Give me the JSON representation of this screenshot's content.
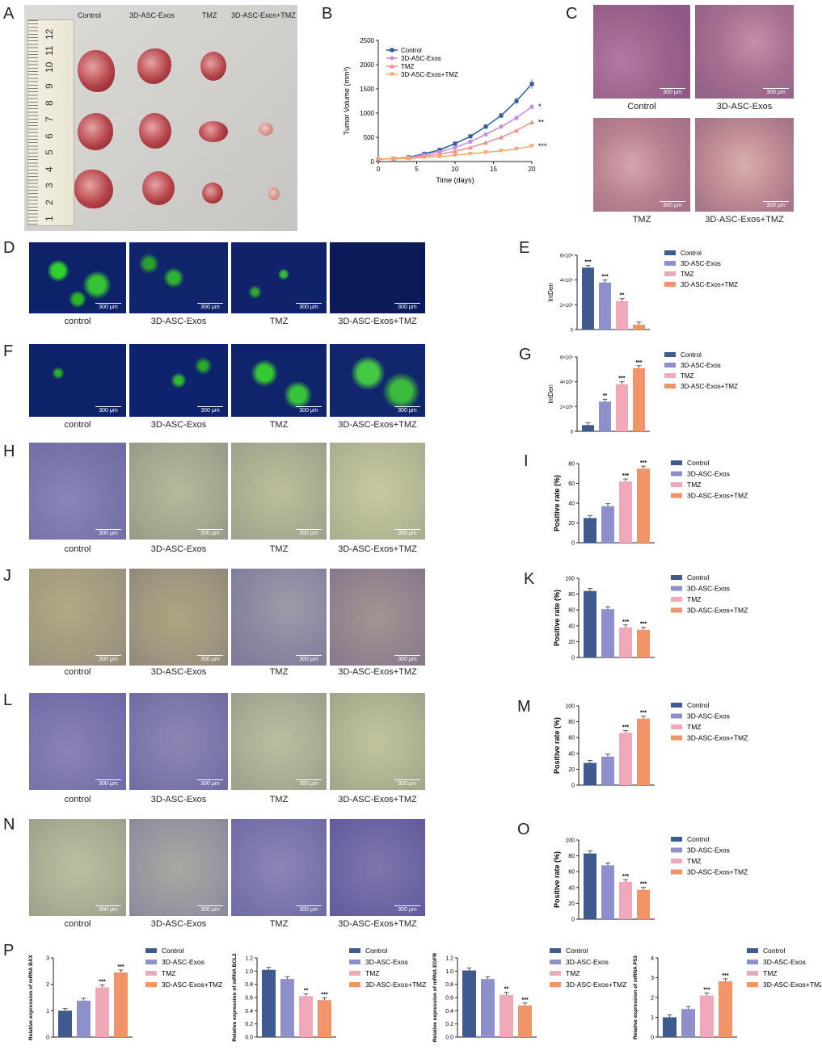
{
  "panel_letters": [
    "A",
    "B",
    "C",
    "D",
    "E",
    "F",
    "G",
    "H",
    "I",
    "J",
    "K",
    "L",
    "M",
    "N",
    "O",
    "P"
  ],
  "groups": [
    "Control",
    "3D-ASC-Exos",
    "TMZ",
    "3D-ASC-Exos+TMZ"
  ],
  "groups_lower": [
    "control",
    "3D-ASC-Exos",
    "TMZ",
    "3D-ASC-Exos+TMZ"
  ],
  "scalebar": "300 μm",
  "colors": {
    "control": "#3F5A8E",
    "exos": "#8E90CC",
    "tmz": "#F1A9B9",
    "combo": "#F0956A"
  },
  "ruler_numbers": [
    "1",
    "2",
    "3",
    "4",
    "5",
    "6",
    "7",
    "8",
    "9",
    "10",
    "11",
    "12"
  ],
  "chart_data": [
    {
      "id": "B",
      "type": "line",
      "xlabel": "Time (days)",
      "ylabel": "Tumor Volume (mm³)",
      "ylim": [
        0,
        2500
      ],
      "xlim": [
        0,
        20
      ],
      "x": [
        0,
        2,
        4,
        6,
        8,
        10,
        12,
        14,
        16,
        18,
        20
      ],
      "xticks": [
        0,
        5,
        10,
        15,
        20
      ],
      "yticks": [
        0,
        500,
        1000,
        1500,
        2000,
        2500
      ],
      "series": [
        {
          "name": "Control",
          "values": [
            50,
            60,
            90,
            160,
            240,
            370,
            520,
            720,
            950,
            1250,
            1600
          ],
          "marker": "square",
          "color": "#2E5B9A"
        },
        {
          "name": "3D-ASC-Exos",
          "values": [
            50,
            60,
            85,
            140,
            200,
            290,
            410,
            560,
            720,
            900,
            1130
          ],
          "marker": "circle",
          "color": "#C58BE0"
        },
        {
          "name": "TMZ",
          "values": [
            50,
            58,
            75,
            110,
            150,
            210,
            290,
            390,
            500,
            640,
            810
          ],
          "marker": "triangle",
          "color": "#F28C8C"
        },
        {
          "name": "3D-ASC-Exos+TMZ",
          "values": [
            50,
            55,
            65,
            85,
            100,
            130,
            160,
            190,
            220,
            260,
            320
          ],
          "marker": "triangle-down",
          "color": "#F4A96A"
        }
      ],
      "significance": [
        "*",
        "**",
        "***"
      ]
    },
    {
      "id": "E",
      "type": "bar",
      "ylabel": "IntDen",
      "ymax": 6000000,
      "yticks": [
        0,
        2000000,
        4000000,
        6000000
      ],
      "yticklabels": [
        "0",
        "2×10⁶",
        "4×10⁶",
        "6×10⁶"
      ],
      "values": [
        5000000,
        3800000,
        2300000,
        400000
      ],
      "sig": [
        "***",
        "***",
        "**",
        ""
      ]
    },
    {
      "id": "G",
      "type": "bar",
      "ylabel": "IntDen",
      "ymax": 6000000,
      "yticks": [
        0,
        2000000,
        4000000,
        6000000
      ],
      "yticklabels": [
        "0",
        "2×10⁶",
        "4×10⁶",
        "6×10⁶"
      ],
      "values": [
        500000,
        2400000,
        3800000,
        5100000
      ],
      "sig": [
        "",
        "**",
        "***",
        "***"
      ]
    },
    {
      "id": "I",
      "type": "bar",
      "ylabel": "Positive rate (%)",
      "ymax": 80,
      "yticks": [
        0,
        20,
        40,
        60,
        80
      ],
      "yticklabels": [
        "0",
        "20",
        "40",
        "60",
        "80"
      ],
      "values": [
        25,
        37,
        62,
        75
      ],
      "sig": [
        "",
        "",
        "***",
        "***"
      ]
    },
    {
      "id": "K",
      "type": "bar",
      "ylabel": "Positive rate (%)",
      "ymax": 100,
      "yticks": [
        0,
        20,
        40,
        60,
        80,
        100
      ],
      "yticklabels": [
        "0",
        "20",
        "40",
        "60",
        "80",
        "100"
      ],
      "values": [
        84,
        61,
        38,
        35
      ],
      "sig": [
        "",
        "",
        "***",
        "***"
      ]
    },
    {
      "id": "M",
      "type": "bar",
      "ylabel": "Positive rate (%)",
      "ymax": 100,
      "yticks": [
        0,
        20,
        40,
        60,
        80,
        100
      ],
      "yticklabels": [
        "0",
        "20",
        "40",
        "60",
        "80",
        "100"
      ],
      "values": [
        28,
        36,
        66,
        84
      ],
      "sig": [
        "",
        "",
        "***",
        "***"
      ]
    },
    {
      "id": "O",
      "type": "bar",
      "ylabel": "Positive rate (%)",
      "ymax": 100,
      "yticks": [
        0,
        20,
        40,
        60,
        80,
        100
      ],
      "yticklabels": [
        "0",
        "20",
        "40",
        "60",
        "80",
        "100"
      ],
      "values": [
        83,
        68,
        47,
        37
      ],
      "sig": [
        "",
        "",
        "***",
        "***"
      ]
    },
    {
      "id": "P1",
      "type": "bar",
      "ylabel": "Relative expression of  mRNA BAX",
      "ymax": 3,
      "yticks": [
        0,
        1,
        2,
        3
      ],
      "yticklabels": [
        "0",
        "1",
        "2",
        "3"
      ],
      "values": [
        1.0,
        1.38,
        1.88,
        2.45
      ],
      "sig": [
        "",
        "",
        "***",
        "***"
      ]
    },
    {
      "id": "P2",
      "type": "bar",
      "ylabel": "Relative expression of  mRNA BCL2",
      "ymax": 1.2,
      "yticks": [
        0,
        0.2,
        0.4,
        0.6,
        0.8,
        1.0,
        1.2
      ],
      "yticklabels": [
        "0.0",
        "0.2",
        "0.4",
        "0.6",
        "0.8",
        "1.0",
        "1.2"
      ],
      "values": [
        1.02,
        0.88,
        0.62,
        0.56
      ],
      "sig": [
        "",
        "",
        "**",
        "***"
      ]
    },
    {
      "id": "P3",
      "type": "bar",
      "ylabel": "Relative expression of  mRNA EGFR",
      "ymax": 1.2,
      "yticks": [
        0,
        0.2,
        0.4,
        0.6,
        0.8,
        1.0,
        1.2
      ],
      "yticklabels": [
        "0.0",
        "0.2",
        "0.4",
        "0.6",
        "0.8",
        "1.0",
        "1.2"
      ],
      "values": [
        1.01,
        0.88,
        0.64,
        0.48
      ],
      "sig": [
        "",
        "",
        "**",
        "***"
      ]
    },
    {
      "id": "P4",
      "type": "bar",
      "ylabel": "Relative expression of  mRNA P53",
      "ymax": 4,
      "yticks": [
        0,
        1,
        2,
        3,
        4
      ],
      "yticklabels": [
        "0",
        "1",
        "2",
        "3",
        "4"
      ],
      "values": [
        1.0,
        1.42,
        2.1,
        2.82
      ],
      "sig": [
        "",
        "",
        "***",
        "***"
      ]
    }
  ]
}
